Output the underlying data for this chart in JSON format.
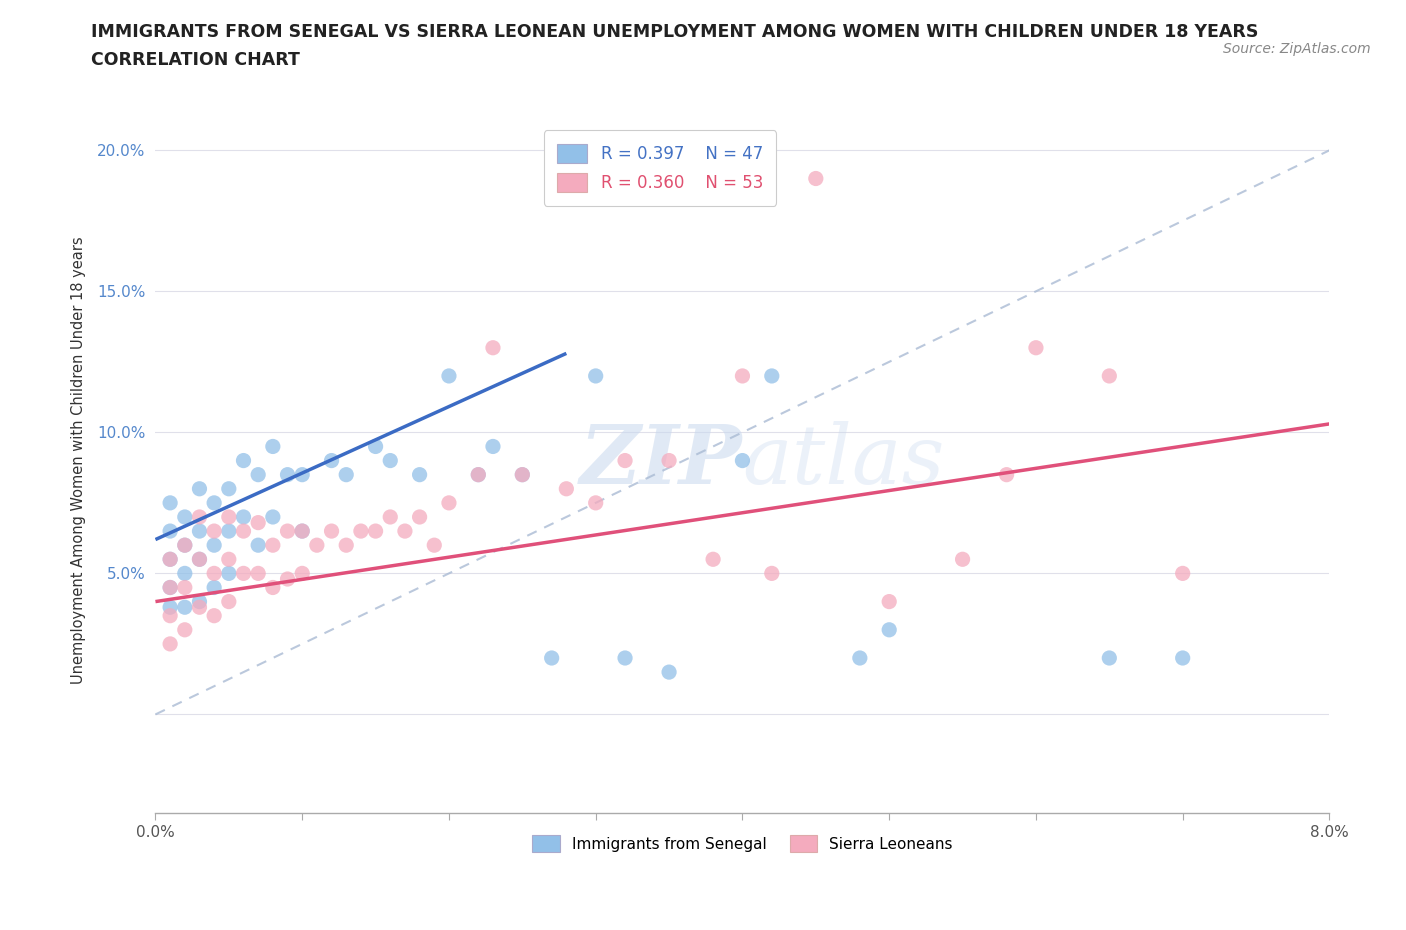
{
  "title_line1": "IMMIGRANTS FROM SENEGAL VS SIERRA LEONEAN UNEMPLOYMENT AMONG WOMEN WITH CHILDREN UNDER 18 YEARS",
  "title_line2": "CORRELATION CHART",
  "source": "Source: ZipAtlas.com",
  "ylabel_label": "Unemployment Among Women with Children Under 18 years",
  "x_min": 0.0,
  "x_max": 0.08,
  "y_min": -0.035,
  "y_max": 0.215,
  "y_ticks": [
    0.0,
    0.05,
    0.1,
    0.15,
    0.2
  ],
  "y_tick_labels": [
    "",
    "5.0%",
    "10.0%",
    "15.0%",
    "20.0%"
  ],
  "x_tick_labels": [
    "0.0%",
    "",
    "",
    "",
    "",
    "",
    "",
    "",
    "8.0%"
  ],
  "blue_color": "#92C0E8",
  "pink_color": "#F4ABBE",
  "blue_line_color": "#3B6BC4",
  "pink_line_color": "#E0507A",
  "legend_label1": "Immigrants from Senegal",
  "legend_label2": "Sierra Leoneans",
  "watermark_zip": "ZIP",
  "watermark_atlas": "atlas",
  "blue_scatter_x": [
    0.001,
    0.001,
    0.001,
    0.001,
    0.001,
    0.002,
    0.002,
    0.002,
    0.002,
    0.003,
    0.003,
    0.003,
    0.003,
    0.004,
    0.004,
    0.004,
    0.005,
    0.005,
    0.005,
    0.006,
    0.006,
    0.007,
    0.007,
    0.008,
    0.008,
    0.009,
    0.01,
    0.01,
    0.012,
    0.013,
    0.015,
    0.016,
    0.018,
    0.02,
    0.023,
    0.03,
    0.04,
    0.05,
    0.065,
    0.07,
    0.022,
    0.025,
    0.027,
    0.032,
    0.035,
    0.042,
    0.048
  ],
  "blue_scatter_y": [
    0.075,
    0.065,
    0.055,
    0.045,
    0.038,
    0.07,
    0.06,
    0.05,
    0.038,
    0.08,
    0.065,
    0.055,
    0.04,
    0.075,
    0.06,
    0.045,
    0.08,
    0.065,
    0.05,
    0.09,
    0.07,
    0.085,
    0.06,
    0.095,
    0.07,
    0.085,
    0.085,
    0.065,
    0.09,
    0.085,
    0.095,
    0.09,
    0.085,
    0.12,
    0.095,
    0.12,
    0.09,
    0.03,
    0.02,
    0.02,
    0.085,
    0.085,
    0.02,
    0.02,
    0.015,
    0.12,
    0.02
  ],
  "pink_scatter_x": [
    0.001,
    0.001,
    0.001,
    0.001,
    0.002,
    0.002,
    0.002,
    0.003,
    0.003,
    0.003,
    0.004,
    0.004,
    0.004,
    0.005,
    0.005,
    0.005,
    0.006,
    0.006,
    0.007,
    0.007,
    0.008,
    0.008,
    0.009,
    0.009,
    0.01,
    0.01,
    0.011,
    0.012,
    0.013,
    0.014,
    0.015,
    0.016,
    0.017,
    0.018,
    0.019,
    0.02,
    0.022,
    0.023,
    0.025,
    0.028,
    0.03,
    0.032,
    0.035,
    0.038,
    0.04,
    0.042,
    0.045,
    0.05,
    0.055,
    0.058,
    0.06,
    0.065,
    0.07
  ],
  "pink_scatter_y": [
    0.055,
    0.045,
    0.035,
    0.025,
    0.06,
    0.045,
    0.03,
    0.07,
    0.055,
    0.038,
    0.065,
    0.05,
    0.035,
    0.07,
    0.055,
    0.04,
    0.065,
    0.05,
    0.068,
    0.05,
    0.06,
    0.045,
    0.065,
    0.048,
    0.065,
    0.05,
    0.06,
    0.065,
    0.06,
    0.065,
    0.065,
    0.07,
    0.065,
    0.07,
    0.06,
    0.075,
    0.085,
    0.13,
    0.085,
    0.08,
    0.075,
    0.09,
    0.09,
    0.055,
    0.12,
    0.05,
    0.19,
    0.04,
    0.055,
    0.085,
    0.13,
    0.12,
    0.05
  ],
  "blue_trend_x0": 0.0,
  "blue_trend_y0": 0.062,
  "blue_trend_x1": 0.028,
  "blue_trend_y1": 0.128,
  "pink_trend_x0": 0.0,
  "pink_trend_y0": 0.04,
  "pink_trend_x1": 0.08,
  "pink_trend_y1": 0.103
}
